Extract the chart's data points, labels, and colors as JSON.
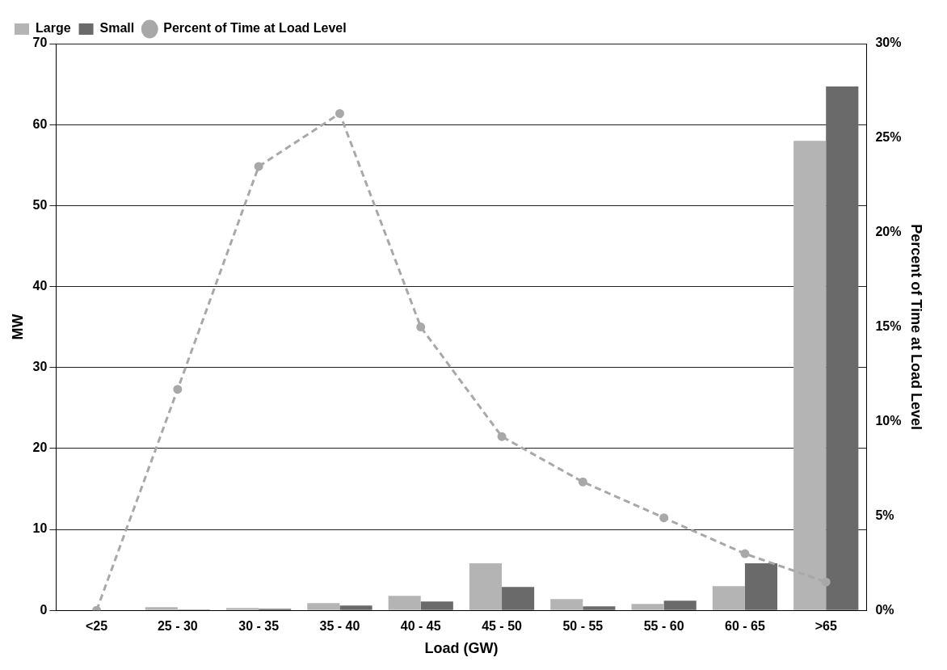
{
  "chart_data": {
    "type": "bar",
    "xlabel": "Load (GW)",
    "ylabel": "MW",
    "y2label": "Percent of Time at Load Level",
    "categories": [
      "<25",
      "25 - 30",
      "30 - 35",
      "35 - 40",
      "40 - 45",
      "45 - 50",
      "50 - 55",
      "55 - 60",
      "60 - 65",
      ">65"
    ],
    "series": [
      {
        "name": "Large",
        "color": "#b4b4b4",
        "values": [
          0,
          0.4,
          0.3,
          0.9,
          1.8,
          5.8,
          1.4,
          0.8,
          3.0,
          58
        ]
      },
      {
        "name": "Small",
        "color": "#6a6a6a",
        "values": [
          0,
          0.1,
          0.2,
          0.6,
          1.1,
          2.9,
          0.5,
          1.2,
          5.8,
          64.7
        ]
      },
      {
        "name": "Percent of Time at Load Level",
        "type": "line",
        "axis": "y2",
        "color": "#a8a8a8",
        "line_style": "dashed",
        "marker": "circle",
        "values": [
          0,
          11.7,
          23.5,
          26.3,
          15.0,
          9.2,
          6.8,
          4.9,
          3.0,
          1.5
        ]
      }
    ],
    "ylim": [
      0,
      70
    ],
    "yticks": [
      0,
      10,
      20,
      30,
      40,
      50,
      60,
      70
    ],
    "y2lim": [
      0,
      30
    ],
    "y2ticks": [
      {
        "value": 0,
        "label": "0%"
      },
      {
        "value": 5,
        "label": "5%"
      },
      {
        "value": 10,
        "label": "10%"
      },
      {
        "value": 15,
        "label": "15%"
      },
      {
        "value": 20,
        "label": "20%"
      },
      {
        "value": 25,
        "label": "25%"
      },
      {
        "value": 30,
        "label": "30%"
      }
    ],
    "grid": "y",
    "legend": "top left"
  }
}
